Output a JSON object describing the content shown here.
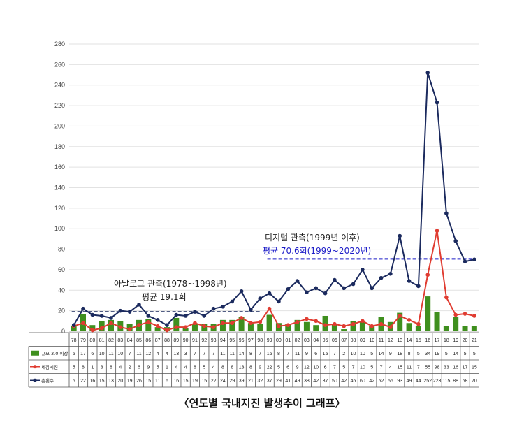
{
  "chart_data": {
    "type": "bar",
    "title": "〈연도별 국내지진 발생추이 그래프〉",
    "categories": [
      "78",
      "79",
      "80",
      "81",
      "82",
      "83",
      "84",
      "85",
      "86",
      "87",
      "88",
      "89",
      "90",
      "91",
      "92",
      "93",
      "94",
      "95",
      "96",
      "97",
      "98",
      "99",
      "00",
      "01",
      "02",
      "03",
      "04",
      "05",
      "06",
      "07",
      "08",
      "09",
      "10",
      "11",
      "12",
      "13",
      "14",
      "15",
      "16",
      "17",
      "18",
      "19",
      "20",
      "21"
    ],
    "ylim": [
      0,
      280
    ],
    "yticks": [
      0,
      20,
      40,
      60,
      80,
      100,
      120,
      140,
      160,
      180,
      200,
      220,
      240,
      260,
      280
    ],
    "grid": true,
    "series": [
      {
        "name": "규모 3.0 이상",
        "kind": "bar",
        "color": "#3f8f1e",
        "values": [
          5,
          17,
          6,
          10,
          11,
          10,
          7,
          11,
          12,
          4,
          4,
          13,
          3,
          7,
          7,
          7,
          11,
          11,
          14,
          8,
          7,
          16,
          8,
          7,
          11,
          9,
          6,
          15,
          7,
          2,
          10,
          10,
          5,
          14,
          9,
          18,
          8,
          5,
          34,
          19,
          5,
          14,
          5,
          5
        ]
      },
      {
        "name": "체감지진",
        "kind": "line",
        "color": "#e03c31",
        "values": [
          5,
          8,
          1,
          3,
          8,
          4,
          2,
          6,
          9,
          5,
          1,
          4,
          4,
          8,
          5,
          4,
          8,
          8,
          13,
          8,
          9,
          22,
          5,
          6,
          9,
          12,
          10,
          6,
          7,
          5,
          7,
          10,
          5,
          7,
          4,
          15,
          11,
          7,
          55,
          98,
          33,
          16,
          17,
          15
        ]
      },
      {
        "name": "총횟수",
        "kind": "line",
        "color": "#1b2a5e",
        "values": [
          6,
          22,
          16,
          15,
          13,
          20,
          19,
          26,
          15,
          11,
          6,
          16,
          15,
          19,
          15,
          22,
          24,
          29,
          39,
          21,
          32,
          37,
          29,
          41,
          49,
          38,
          42,
          37,
          50,
          42,
          46,
          60,
          42,
          52,
          56,
          93,
          49,
          44,
          252,
          223,
          115,
          88,
          68,
          70
        ]
      }
    ],
    "table_values": {
      "규모 3.0 이상": [
        "5",
        "17",
        "6",
        "10",
        "11",
        "10",
        "7",
        "11",
        "12",
        "4",
        "4",
        "13",
        "3",
        "7",
        "7",
        "7",
        "11",
        "11",
        "14",
        "8",
        "7",
        "16",
        "8",
        "7",
        "11",
        "9",
        "6",
        "15",
        "7",
        "2",
        "10",
        "10",
        "5",
        "14",
        "9",
        "18",
        "8",
        "5",
        "34",
        "19",
        "5",
        "14",
        "5",
        "5"
      ],
      "체감지진": [
        "5",
        "8",
        "1",
        "3",
        "8",
        "4",
        "2",
        "6",
        "9",
        "5",
        "1",
        "4",
        "4",
        "8",
        "5",
        "4",
        "8",
        "8",
        "13",
        "8",
        "9",
        "22",
        "5",
        "6",
        "9",
        "12",
        "10",
        "6",
        "7",
        "5",
        "7",
        "10",
        "5",
        "7",
        "4",
        "15",
        "11",
        "7",
        "55",
        "98",
        "33",
        "16",
        "17",
        "15"
      ],
      "총횟수": [
        "6",
        "22",
        "16",
        "15",
        "13",
        "20",
        "19",
        "26",
        "15",
        "11",
        "6",
        "16",
        "15",
        "19",
        "15",
        "22",
        "24",
        "29",
        "39",
        "21",
        "32",
        "37",
        "29",
        "41",
        "49",
        "38",
        "42",
        "37",
        "50",
        "42",
        "46",
        "60",
        "42",
        "52",
        "56",
        "93",
        "49",
        "44",
        "252",
        "223",
        "115",
        "88",
        "68",
        "70"
      ]
    },
    "annotations": [
      {
        "text": "아날로그 관측(1978~1998년)",
        "color": "#222222"
      },
      {
        "text": "평균 19.1회",
        "color": "#222222",
        "value": 19.1,
        "from": "78",
        "to": "98"
      },
      {
        "text": "디지털 관측(1999년 이후)",
        "color": "#222222"
      },
      {
        "text": "평균 70.6회(1999~2020년)",
        "color": "#1c1cc8",
        "value": 70.6,
        "from": "99",
        "to": "21"
      }
    ]
  }
}
